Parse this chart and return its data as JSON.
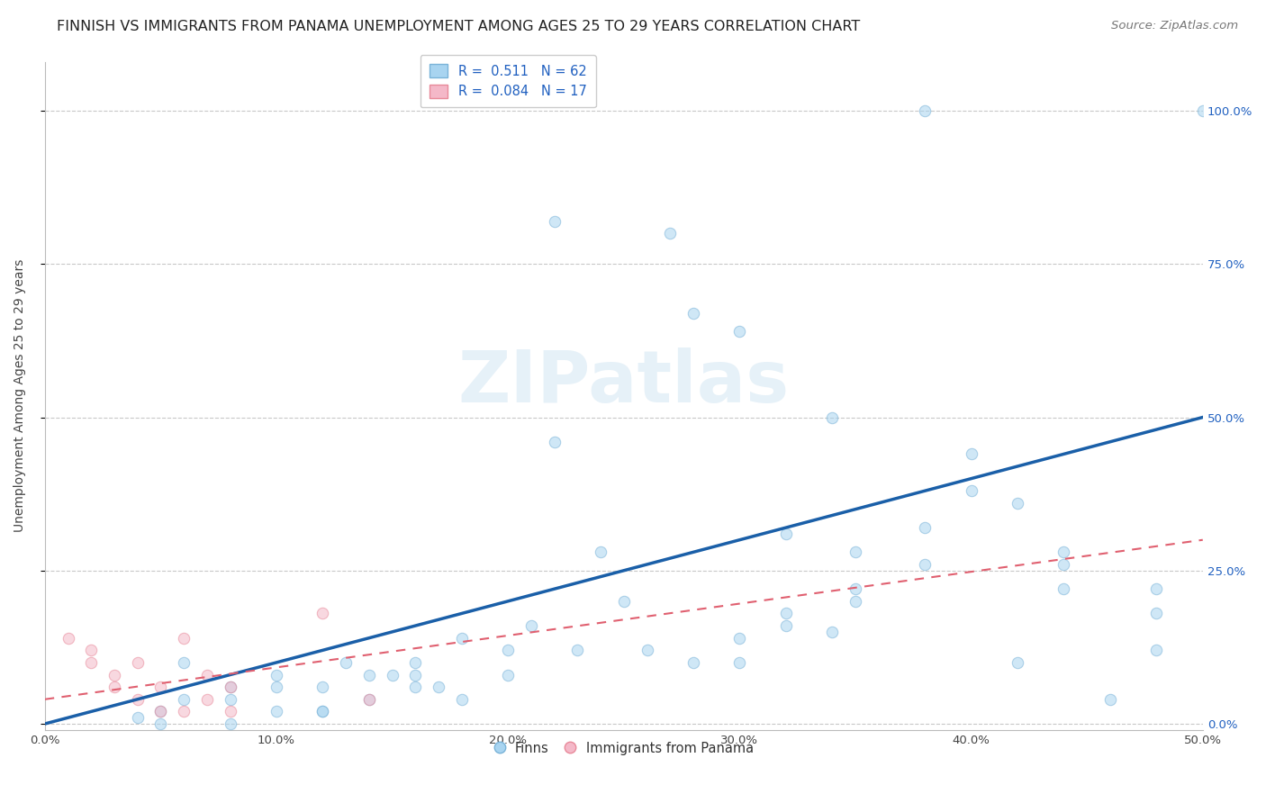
{
  "title": "FINNISH VS IMMIGRANTS FROM PANAMA UNEMPLOYMENT AMONG AGES 25 TO 29 YEARS CORRELATION CHART",
  "source": "Source: ZipAtlas.com",
  "ylabel": "Unemployment Among Ages 25 to 29 years",
  "xlim": [
    0.0,
    0.5
  ],
  "ylim": [
    -0.01,
    1.08
  ],
  "xticks": [
    0.0,
    0.1,
    0.2,
    0.3,
    0.4,
    0.5
  ],
  "yticks": [
    0.0,
    0.25,
    0.5,
    0.75,
    1.0
  ],
  "ytick_labels_right": [
    "0.0%",
    "25.0%",
    "50.0%",
    "75.0%",
    "100.0%"
  ],
  "xtick_labels": [
    "0.0%",
    "10.0%",
    "20.0%",
    "30.0%",
    "40.0%",
    "50.0%"
  ],
  "watermark": "ZIPatlas",
  "blue_scatter_x": [
    0.38,
    0.5,
    0.22,
    0.27,
    0.34,
    0.08,
    0.12,
    0.05,
    0.05,
    0.1,
    0.12,
    0.14,
    0.16,
    0.18,
    0.16,
    0.16,
    0.17,
    0.2,
    0.2,
    0.23,
    0.26,
    0.28,
    0.3,
    0.3,
    0.32,
    0.32,
    0.35,
    0.35,
    0.38,
    0.4,
    0.42,
    0.44,
    0.44,
    0.48,
    0.28,
    0.3,
    0.32,
    0.35,
    0.38,
    0.4,
    0.44,
    0.48,
    0.04,
    0.06,
    0.08,
    0.1,
    0.13,
    0.15,
    0.18,
    0.21,
    0.25,
    0.12,
    0.14,
    0.24,
    0.22,
    0.06,
    0.08,
    0.1,
    0.34,
    0.48,
    0.42,
    0.46
  ],
  "blue_scatter_y": [
    1.0,
    1.0,
    0.82,
    0.8,
    0.5,
    0.0,
    0.02,
    0.0,
    0.02,
    0.02,
    0.02,
    0.04,
    0.06,
    0.04,
    0.1,
    0.08,
    0.06,
    0.08,
    0.12,
    0.12,
    0.12,
    0.1,
    0.14,
    0.1,
    0.18,
    0.16,
    0.22,
    0.2,
    0.32,
    0.38,
    0.36,
    0.28,
    0.26,
    0.22,
    0.67,
    0.64,
    0.31,
    0.28,
    0.26,
    0.44,
    0.22,
    0.18,
    0.01,
    0.04,
    0.04,
    0.06,
    0.1,
    0.08,
    0.14,
    0.16,
    0.2,
    0.06,
    0.08,
    0.28,
    0.46,
    0.1,
    0.06,
    0.08,
    0.15,
    0.12,
    0.1,
    0.04
  ],
  "pink_scatter_x": [
    0.01,
    0.02,
    0.02,
    0.03,
    0.03,
    0.04,
    0.04,
    0.05,
    0.05,
    0.06,
    0.06,
    0.07,
    0.07,
    0.08,
    0.08,
    0.12,
    0.14
  ],
  "pink_scatter_y": [
    0.14,
    0.1,
    0.12,
    0.06,
    0.08,
    0.04,
    0.1,
    0.02,
    0.06,
    0.02,
    0.14,
    0.04,
    0.08,
    0.02,
    0.06,
    0.18,
    0.04
  ],
  "blue_line_x0": 0.0,
  "blue_line_x1": 0.5,
  "blue_line_y0": 0.0,
  "blue_line_y1": 0.5,
  "pink_line_x0": 0.0,
  "pink_line_x1": 0.5,
  "pink_line_y0": 0.04,
  "pink_line_y1": 0.3,
  "scatter_size": 80,
  "scatter_alpha": 0.55,
  "blue_color": "#a8d4f0",
  "pink_color": "#f4b8c8",
  "blue_edge": "#7ab3d8",
  "pink_edge": "#e88a9a",
  "blue_line_color": "#1a5fa8",
  "pink_line_color": "#e06070",
  "grid_color": "#c8c8c8",
  "bg_color": "#ffffff",
  "title_fontsize": 11.5,
  "axis_label_fontsize": 10,
  "tick_fontsize": 9.5,
  "source_fontsize": 9.5,
  "legend_label_color": "#2060c0",
  "legend_R_blue": "R =  0.511",
  "legend_N_blue": "N = 62",
  "legend_R_pink": "R =  0.084",
  "legend_N_pink": "N = 17"
}
